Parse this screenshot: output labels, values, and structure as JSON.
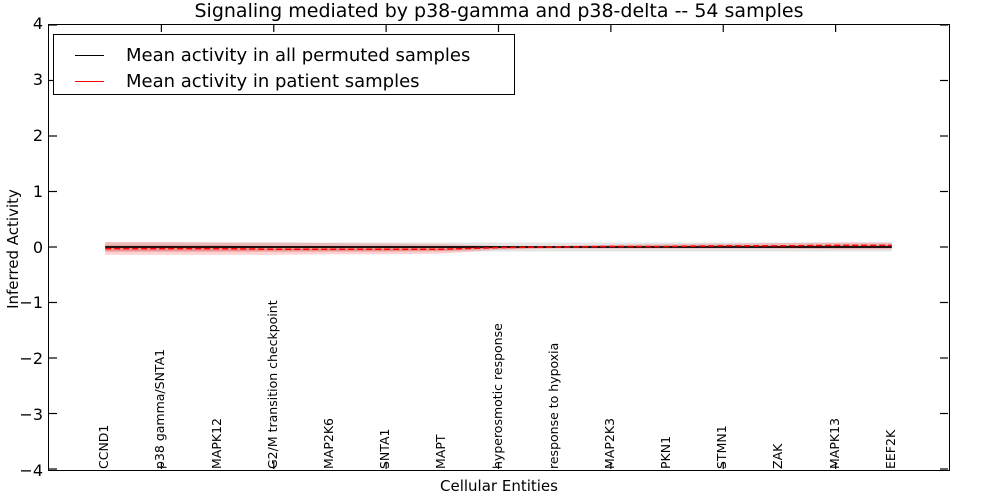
{
  "chart_data": {
    "type": "line",
    "title": "Signaling mediated by p38-gamma and p38-delta -- 54 samples",
    "xlabel": "Cellular Entities",
    "ylabel": "Inferred Activity",
    "ylim": [
      -4,
      4
    ],
    "yticks": [
      -4,
      -3,
      -2,
      -1,
      0,
      1,
      2,
      3,
      4
    ],
    "grid": false,
    "legend_position": "upper left",
    "categories": [
      "CCND1",
      "p38 gamma/SNTA1",
      "MAPK12",
      "G2/M transition checkpoint",
      "MAP2K6",
      "SNTA1",
      "MAPT",
      "hyperosmotic response",
      "response to hypoxia",
      "MAP2K3",
      "PKN1",
      "STMN1",
      "ZAK",
      "MAPK13",
      "EEF2K"
    ],
    "series": [
      {
        "name": "Mean activity in all permuted samples",
        "color": "#000000",
        "line_style": "solid",
        "values": [
          0,
          0,
          0,
          0,
          0,
          0,
          0,
          0,
          0,
          0,
          0,
          0,
          0,
          0,
          0
        ],
        "band_upper": [
          0.08,
          0.08,
          0.08,
          0.08,
          0.08,
          0.08,
          0.08,
          0.08,
          0.08,
          0.08,
          0.08,
          0.08,
          0.08,
          0.08,
          0.08
        ],
        "band_lower": [
          -0.08,
          -0.08,
          -0.08,
          -0.08,
          -0.08,
          -0.08,
          -0.08,
          -0.08,
          -0.08,
          -0.08,
          -0.08,
          -0.08,
          -0.08,
          -0.08,
          -0.08
        ],
        "band_color": "#000000",
        "band_opacity": 0.1
      },
      {
        "name": "Mean activity in patient samples",
        "color": "#ff0000",
        "line_style": "dashed",
        "values": [
          -0.03,
          -0.03,
          -0.03,
          -0.04,
          -0.04,
          -0.04,
          -0.04,
          -0.01,
          0.0,
          0.01,
          0.01,
          0.02,
          0.02,
          0.03,
          0.03
        ],
        "band_upper": [
          0.09,
          0.09,
          0.08,
          0.08,
          0.07,
          0.06,
          0.05,
          0.02,
          0.02,
          0.04,
          0.05,
          0.06,
          0.07,
          0.08,
          0.08
        ],
        "band_lower": [
          -0.14,
          -0.14,
          -0.14,
          -0.14,
          -0.13,
          -0.13,
          -0.12,
          -0.05,
          -0.03,
          -0.03,
          -0.03,
          -0.03,
          -0.03,
          -0.04,
          -0.04
        ],
        "band_inner_upper": [
          0.03,
          0.03,
          0.03,
          0.02,
          0.02,
          0.02,
          0.01,
          0.0,
          0.01,
          0.02,
          0.02,
          0.03,
          0.03,
          0.04,
          0.04
        ],
        "band_inner_lower": [
          -0.08,
          -0.08,
          -0.08,
          -0.08,
          -0.08,
          -0.08,
          -0.07,
          -0.03,
          -0.01,
          -0.01,
          -0.01,
          -0.01,
          -0.01,
          -0.02,
          -0.02
        ],
        "band_color": "#ff0000",
        "band_opacity": 0.18,
        "band_inner_opacity": 0.22
      }
    ]
  }
}
